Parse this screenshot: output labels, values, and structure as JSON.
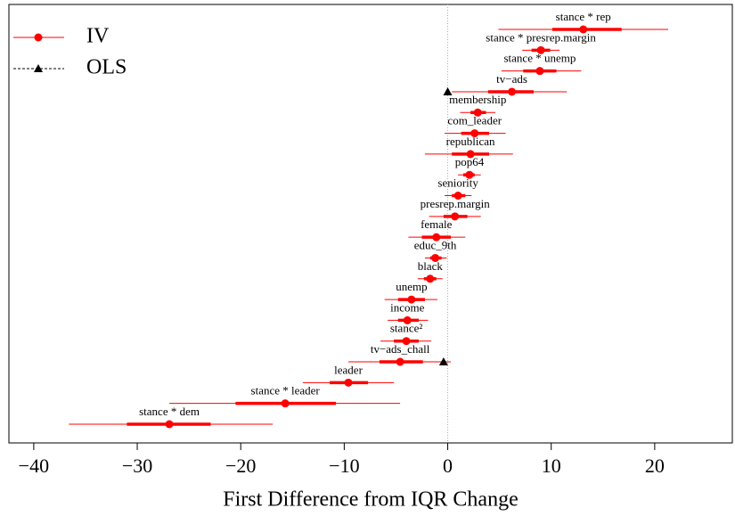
{
  "chart_data": {
    "type": "coefplot",
    "xlabel": "First Difference from IQR Change",
    "xlim": [
      -42.4,
      27.5
    ],
    "xticks": [
      {
        "value": -40,
        "label": "−40"
      },
      {
        "value": -30,
        "label": "−30"
      },
      {
        "value": -20,
        "label": "−20"
      },
      {
        "value": -10,
        "label": "−10"
      },
      0,
      10,
      20
    ],
    "zero_line": true,
    "legend": "upper left",
    "categories": [
      "stance * rep",
      "stance * presrep.margin",
      "stance * unemp",
      "tv−ads",
      "membership",
      "com_leader",
      "republican",
      "pop64",
      "seniority",
      "presrep.margin",
      "female",
      "educ_9th",
      "black",
      "unemp",
      "income",
      "stance²",
      "tv−ads_chall",
      "leader",
      "stance * leader",
      "stance * dem"
    ],
    "series": [
      {
        "name": "IV",
        "color": "#ff0000",
        "marker": "circle",
        "values": [
          13.1,
          9.0,
          8.9,
          6.2,
          2.9,
          2.6,
          2.2,
          2.1,
          1.0,
          0.7,
          -1.1,
          -1.2,
          -1.7,
          -3.5,
          -3.9,
          -4.0,
          -4.6,
          -9.6,
          -15.7,
          -26.9
        ],
        "outer_low": [
          4.9,
          7.2,
          5.2,
          0.4,
          1.2,
          -0.3,
          -2.2,
          1.0,
          -0.3,
          -1.8,
          -3.8,
          -2.2,
          -2.9,
          -6.1,
          -5.8,
          -6.5,
          -9.6,
          -14.0,
          -26.9,
          -36.6
        ],
        "outer_high": [
          21.3,
          10.8,
          12.9,
          11.5,
          4.6,
          5.6,
          6.3,
          3.2,
          2.3,
          3.2,
          1.7,
          -0.1,
          -0.5,
          -1.0,
          -1.9,
          -1.6,
          0.3,
          -5.2,
          -4.6,
          -16.9
        ],
        "inner_low": [
          10.1,
          8.1,
          7.3,
          3.9,
          2.2,
          1.3,
          0.4,
          1.5,
          0.4,
          -0.4,
          -2.5,
          -1.7,
          -2.3,
          -4.8,
          -4.8,
          -5.2,
          -6.6,
          -11.4,
          -20.5,
          -31.0
        ],
        "inner_high": [
          16.8,
          9.9,
          10.5,
          8.3,
          3.7,
          4.0,
          4.0,
          2.6,
          1.7,
          1.9,
          0.3,
          -0.6,
          -1.1,
          -2.2,
          -2.8,
          -2.8,
          -2.4,
          -7.7,
          -10.8,
          -22.9
        ]
      },
      {
        "name": "OLS",
        "color": "#000000",
        "marker": "triangle",
        "values": [
          null,
          null,
          null,
          0,
          null,
          null,
          null,
          null,
          null,
          null,
          null,
          null,
          null,
          null,
          null,
          null,
          -0.4,
          null,
          null,
          null
        ]
      }
    ]
  }
}
